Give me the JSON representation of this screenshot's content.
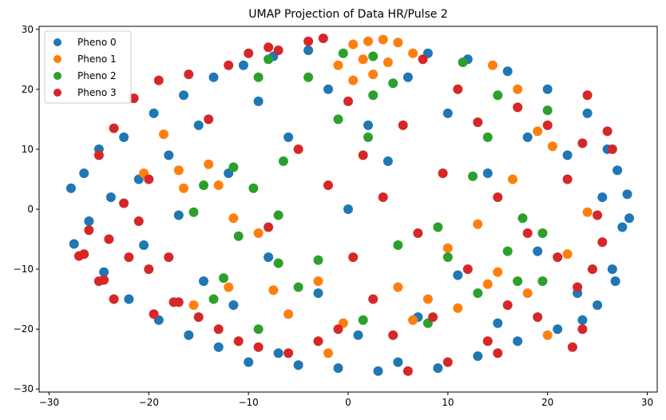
{
  "chart_data": {
    "type": "scatter",
    "title": "UMAP Projection of Data HR/Pulse 2",
    "xlabel": "",
    "ylabel": "",
    "xlim": [
      -31,
      31
    ],
    "ylim": [
      -30.5,
      30.5
    ],
    "xticks": [
      -30,
      -20,
      -10,
      0,
      10,
      20,
      30
    ],
    "yticks": [
      -30,
      -20,
      -10,
      0,
      10,
      20,
      30
    ],
    "legend_position": "top-left",
    "grid": false,
    "series": [
      {
        "name": "Pheno 0",
        "color": "#1f77b4",
        "points": [
          [
            -27.8,
            3.5
          ],
          [
            -27.5,
            -5.8
          ],
          [
            -26.5,
            6.0
          ],
          [
            -26.0,
            -2.0
          ],
          [
            -25.0,
            10.0
          ],
          [
            -24.5,
            -10.5
          ],
          [
            -23.8,
            2.0
          ],
          [
            -22.5,
            12.0
          ],
          [
            -22.0,
            -15.0
          ],
          [
            -21.0,
            5.0
          ],
          [
            -20.5,
            -6.0
          ],
          [
            -19.5,
            16.0
          ],
          [
            -19.0,
            -18.5
          ],
          [
            -18.0,
            9.0
          ],
          [
            -17.0,
            -1.0
          ],
          [
            -16.5,
            19.0
          ],
          [
            -16.0,
            -21.0
          ],
          [
            -15.0,
            14.0
          ],
          [
            -14.5,
            -12.0
          ],
          [
            -13.5,
            22.0
          ],
          [
            -13.0,
            -23.0
          ],
          [
            -12.0,
            6.0
          ],
          [
            -11.5,
            -16.0
          ],
          [
            -10.5,
            24.0
          ],
          [
            -10.0,
            -25.5
          ],
          [
            -9.0,
            18.0
          ],
          [
            -8.0,
            -8.0
          ],
          [
            -7.5,
            25.5
          ],
          [
            -7.0,
            -24.0
          ],
          [
            -6.0,
            12.0
          ],
          [
            -5.0,
            -26.0
          ],
          [
            -4.0,
            26.5
          ],
          [
            -3.0,
            -14.0
          ],
          [
            -2.0,
            20.0
          ],
          [
            -1.0,
            -26.5
          ],
          [
            0.0,
            0.0
          ],
          [
            1.0,
            -21.0
          ],
          [
            2.0,
            14.0
          ],
          [
            3.0,
            -27.0
          ],
          [
            4.0,
            8.0
          ],
          [
            5.0,
            -25.5
          ],
          [
            6.0,
            22.0
          ],
          [
            7.0,
            -18.0
          ],
          [
            8.0,
            26.0
          ],
          [
            9.0,
            -26.5
          ],
          [
            10.0,
            16.0
          ],
          [
            11.0,
            -11.0
          ],
          [
            12.0,
            25.0
          ],
          [
            13.0,
            -24.5
          ],
          [
            14.0,
            6.0
          ],
          [
            15.0,
            -19.0
          ],
          [
            16.0,
            23.0
          ],
          [
            17.0,
            -22.0
          ],
          [
            18.0,
            12.0
          ],
          [
            19.0,
            -7.0
          ],
          [
            20.0,
            20.0
          ],
          [
            21.0,
            -20.0
          ],
          [
            22.0,
            9.0
          ],
          [
            23.0,
            -14.0
          ],
          [
            24.0,
            16.0
          ],
          [
            25.0,
            -16.0
          ],
          [
            25.5,
            2.0
          ],
          [
            26.0,
            10.0
          ],
          [
            26.5,
            -10.0
          ],
          [
            27.0,
            6.5
          ],
          [
            27.5,
            -3.0
          ],
          [
            28.0,
            2.5
          ],
          [
            28.2,
            -1.5
          ],
          [
            26.8,
            -12.0
          ],
          [
            23.5,
            -18.5
          ]
        ]
      },
      {
        "name": "Pheno 1",
        "color": "#ff7f0e",
        "points": [
          [
            0.5,
            27.5
          ],
          [
            2.0,
            28.0
          ],
          [
            3.5,
            28.3
          ],
          [
            5.0,
            27.8
          ],
          [
            1.5,
            25.0
          ],
          [
            4.0,
            24.5
          ],
          [
            6.5,
            26.0
          ],
          [
            -1.0,
            24.0
          ],
          [
            2.5,
            22.5
          ],
          [
            0.5,
            21.5
          ],
          [
            -18.5,
            12.5
          ],
          [
            -20.5,
            6.0
          ],
          [
            -17.0,
            6.5
          ],
          [
            -16.5,
            3.5
          ],
          [
            -13.0,
            4.0
          ],
          [
            -14.0,
            7.5
          ],
          [
            -11.5,
            -1.5
          ],
          [
            -9.0,
            -4.0
          ],
          [
            -12.0,
            -13.0
          ],
          [
            -15.5,
            -16.0
          ],
          [
            -7.5,
            -13.5
          ],
          [
            -3.0,
            -12.0
          ],
          [
            5.0,
            -13.0
          ],
          [
            8.0,
            -15.0
          ],
          [
            11.0,
            -16.5
          ],
          [
            14.0,
            -12.5
          ],
          [
            15.0,
            -10.5
          ],
          [
            18.0,
            -14.0
          ],
          [
            20.0,
            -21.0
          ],
          [
            20.5,
            10.5
          ],
          [
            19.0,
            13.0
          ],
          [
            16.5,
            5.0
          ],
          [
            13.0,
            -2.5
          ],
          [
            10.0,
            -6.5
          ],
          [
            -2.0,
            -24.0
          ],
          [
            17.0,
            20.0
          ],
          [
            14.5,
            24.0
          ],
          [
            22.0,
            -7.5
          ],
          [
            24.0,
            -0.5
          ],
          [
            -6.0,
            -17.5
          ],
          [
            -0.5,
            -19.0
          ],
          [
            6.5,
            -18.5
          ]
        ]
      },
      {
        "name": "Pheno 2",
        "color": "#2ca02c",
        "points": [
          [
            -0.5,
            26.0
          ],
          [
            2.5,
            25.5
          ],
          [
            4.5,
            21.0
          ],
          [
            2.5,
            19.0
          ],
          [
            -8.0,
            25.0
          ],
          [
            -9.0,
            22.0
          ],
          [
            -11.5,
            7.0
          ],
          [
            -14.5,
            4.0
          ],
          [
            -9.5,
            3.5
          ],
          [
            -15.5,
            -0.5
          ],
          [
            -11.0,
            -4.5
          ],
          [
            -7.0,
            -1.0
          ],
          [
            -12.5,
            -11.5
          ],
          [
            -7.0,
            -9.0
          ],
          [
            -5.0,
            -13.0
          ],
          [
            -9.0,
            -20.0
          ],
          [
            -13.5,
            -15.0
          ],
          [
            1.5,
            -18.5
          ],
          [
            8.0,
            -19.0
          ],
          [
            13.0,
            -14.0
          ],
          [
            17.0,
            -12.0
          ],
          [
            19.5,
            -12.0
          ],
          [
            16.0,
            -7.0
          ],
          [
            17.5,
            -1.5
          ],
          [
            19.5,
            -4.0
          ],
          [
            12.5,
            5.5
          ],
          [
            10.0,
            -8.0
          ],
          [
            14.0,
            12.0
          ],
          [
            20.0,
            16.5
          ],
          [
            11.5,
            24.5
          ],
          [
            15.0,
            19.0
          ],
          [
            -3.0,
            -8.5
          ],
          [
            5.0,
            -6.0
          ],
          [
            9.0,
            -3.0
          ],
          [
            -6.5,
            8.0
          ],
          [
            2.0,
            12.0
          ],
          [
            -4.0,
            22.0
          ],
          [
            -1.0,
            15.0
          ]
        ]
      },
      {
        "name": "Pheno 3",
        "color": "#d62728",
        "points": [
          [
            -25.0,
            -12.0
          ],
          [
            -26.5,
            -7.5
          ],
          [
            -23.5,
            -15.0
          ],
          [
            -26.0,
            -3.5
          ],
          [
            -24.0,
            -5.0
          ],
          [
            -25.0,
            9.0
          ],
          [
            -23.5,
            13.5
          ],
          [
            -22.5,
            1.0
          ],
          [
            -20.0,
            -10.0
          ],
          [
            -21.5,
            18.5
          ],
          [
            -19.0,
            21.5
          ],
          [
            -18.0,
            -8.0
          ],
          [
            -17.0,
            -15.5
          ],
          [
            -16.0,
            22.5
          ],
          [
            -15.0,
            -18.0
          ],
          [
            -14.0,
            15.0
          ],
          [
            -13.0,
            -20.0
          ],
          [
            -12.0,
            24.0
          ],
          [
            -11.0,
            -22.0
          ],
          [
            -10.0,
            26.0
          ],
          [
            -9.0,
            -23.0
          ],
          [
            -8.0,
            -3.0
          ],
          [
            -7.0,
            26.5
          ],
          [
            -6.0,
            -24.0
          ],
          [
            -5.0,
            10.0
          ],
          [
            -4.0,
            28.0
          ],
          [
            -3.0,
            -22.0
          ],
          [
            -2.0,
            4.0
          ],
          [
            -1.0,
            -20.0
          ],
          [
            0.0,
            18.0
          ],
          [
            0.5,
            -8.0
          ],
          [
            1.5,
            9.0
          ],
          [
            2.5,
            -15.0
          ],
          [
            3.5,
            2.0
          ],
          [
            4.5,
            -21.0
          ],
          [
            5.5,
            14.0
          ],
          [
            6.0,
            -27.0
          ],
          [
            7.0,
            -4.0
          ],
          [
            7.5,
            25.0
          ],
          [
            8.5,
            -18.0
          ],
          [
            9.5,
            6.0
          ],
          [
            10.0,
            -25.5
          ],
          [
            11.0,
            20.0
          ],
          [
            12.0,
            -10.0
          ],
          [
            13.0,
            14.5
          ],
          [
            14.0,
            -22.0
          ],
          [
            15.0,
            2.0
          ],
          [
            16.0,
            -16.0
          ],
          [
            17.0,
            17.0
          ],
          [
            18.0,
            -4.0
          ],
          [
            19.0,
            -18.0
          ],
          [
            20.0,
            14.0
          ],
          [
            21.0,
            -8.0
          ],
          [
            22.0,
            5.0
          ],
          [
            23.0,
            -13.0
          ],
          [
            23.5,
            11.0
          ],
          [
            24.5,
            -10.0
          ],
          [
            24.0,
            19.0
          ],
          [
            25.0,
            -1.0
          ],
          [
            26.0,
            13.0
          ],
          [
            26.5,
            10.0
          ],
          [
            25.5,
            -5.5
          ],
          [
            23.5,
            -20.0
          ],
          [
            22.5,
            -23.0
          ],
          [
            15.0,
            -24.0
          ],
          [
            -20.0,
            5.0
          ],
          [
            -21.0,
            -2.0
          ],
          [
            -22.0,
            -8.0
          ],
          [
            -27.0,
            -7.8
          ],
          [
            -24.5,
            -11.8
          ],
          [
            -19.5,
            -17.5
          ],
          [
            -17.5,
            -15.5
          ],
          [
            -8.0,
            27.0
          ],
          [
            -2.5,
            28.5
          ]
        ]
      }
    ]
  }
}
